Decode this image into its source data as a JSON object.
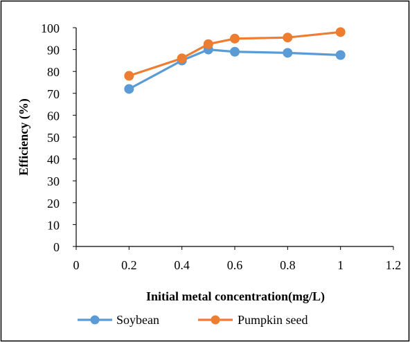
{
  "chart_data": {
    "type": "line",
    "xlabel": "Initial metal concentration(mg/L)",
    "ylabel": "Efficiency (%)",
    "xlim": [
      0,
      1.2
    ],
    "ylim": [
      0,
      100
    ],
    "x_ticks": [
      "0",
      "0.2",
      "0.4",
      "0.6",
      "0.8",
      "1",
      "1.2"
    ],
    "y_ticks": [
      "0",
      "10",
      "20",
      "30",
      "40",
      "50",
      "60",
      "70",
      "80",
      "90",
      "100"
    ],
    "grid": false,
    "legend_position": "bottom",
    "series": [
      {
        "name": "Soybean",
        "color": "#5B9BD5",
        "x": [
          0.2,
          0.4,
          0.5,
          0.6,
          0.8,
          1.0
        ],
        "y": [
          72,
          85,
          90,
          89,
          88.5,
          87.5
        ]
      },
      {
        "name": "Pumpkin seed",
        "color": "#ED7D31",
        "x": [
          0.2,
          0.4,
          0.5,
          0.6,
          0.8,
          1.0
        ],
        "y": [
          78,
          86,
          92.5,
          95,
          95.5,
          98
        ]
      }
    ]
  }
}
